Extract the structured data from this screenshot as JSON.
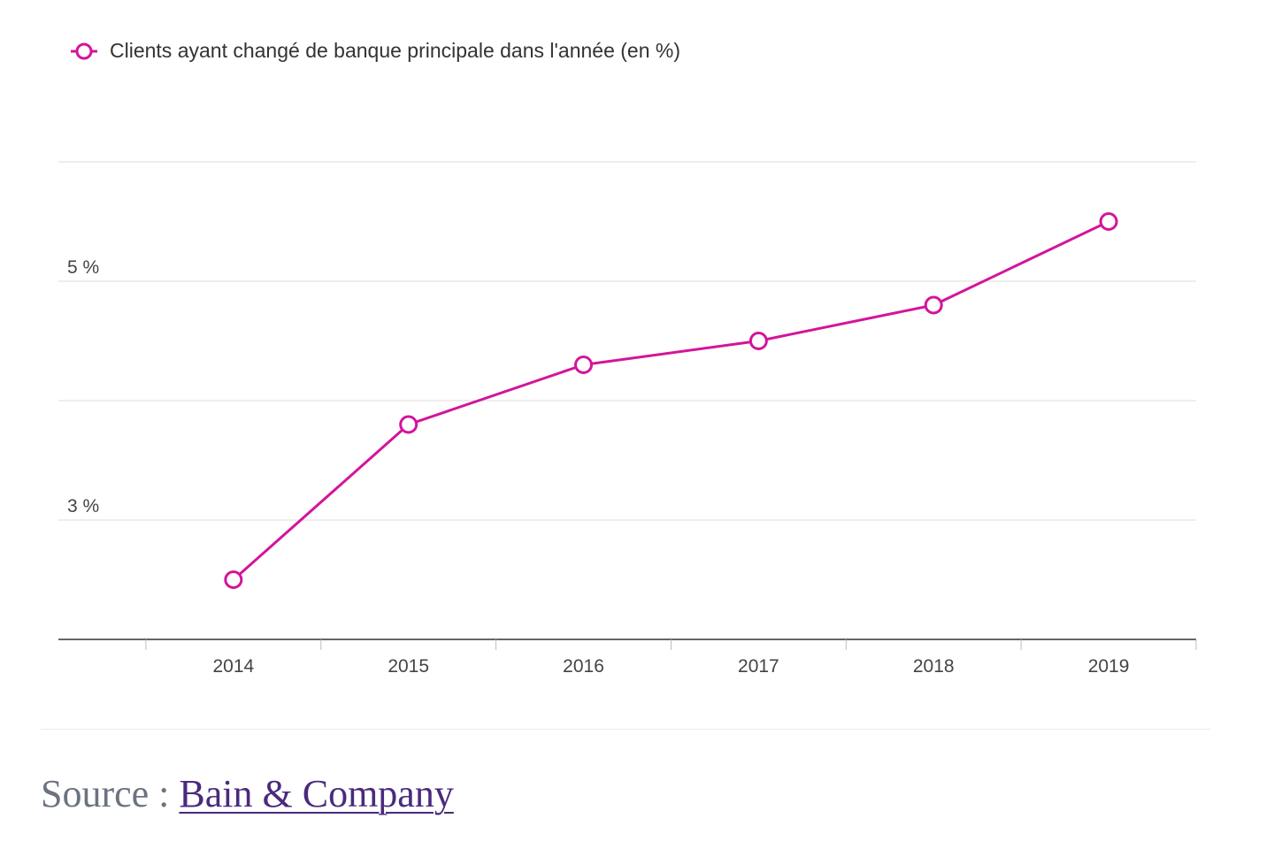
{
  "colors": {
    "series": "#d3159b",
    "grid": "#e3e3e3",
    "axis": "#333333",
    "source_label": "#6b7280",
    "source_link": "#4b2a7d"
  },
  "chart_data": {
    "type": "line",
    "legend_position": "top-left",
    "grid": true,
    "categories": [
      "2014",
      "2015",
      "2016",
      "2017",
      "2018",
      "2019"
    ],
    "series": [
      {
        "name": "Clients ayant changé de banque principale dans l'année (en %)",
        "values": [
          2.5,
          3.8,
          4.3,
          4.5,
          4.8,
          5.5
        ]
      }
    ],
    "y_ticks": [
      {
        "value": 3,
        "label": "3 %"
      },
      {
        "value": 5,
        "label": "5 %"
      }
    ],
    "ylim": [
      2.0,
      6.0
    ]
  },
  "source": {
    "label": "Source : ",
    "link_text": "Bain & Company"
  }
}
